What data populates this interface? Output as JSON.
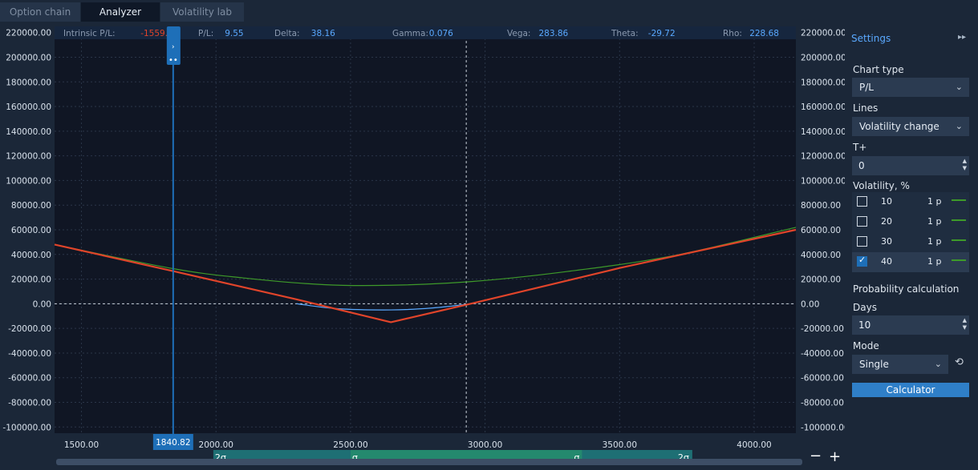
{
  "tabs": [
    {
      "label": "Option chain"
    },
    {
      "label": "Analyzer"
    },
    {
      "label": "Volatility lab"
    }
  ],
  "greeks": [
    {
      "label": "Intrinsic P/L:",
      "value": "-1559.75",
      "color": "#e0442a"
    },
    {
      "label": "P/L:",
      "value": "9.55",
      "color": "#5aa9ff"
    },
    {
      "label": "Delta:",
      "value": "38.16",
      "color": "#5aa9ff"
    },
    {
      "label": "Gamma:",
      "value": "0.076",
      "color": "#5aa9ff"
    },
    {
      "label": "Vega:",
      "value": "283.86",
      "color": "#5aa9ff"
    },
    {
      "label": "Theta:",
      "value": "-29.72",
      "color": "#5aa9ff"
    },
    {
      "label": "Rho:",
      "value": "228.68",
      "color": "#5aa9ff"
    }
  ],
  "chart_data": {
    "type": "line",
    "x_range": [
      1400,
      4155
    ],
    "y_range": [
      -105000,
      225000
    ],
    "ylim_ticks": [
      220000,
      200000,
      180000,
      160000,
      140000,
      120000,
      100000,
      80000,
      60000,
      40000,
      20000,
      0,
      -20000,
      -40000,
      -60000,
      -80000,
      -100000
    ],
    "y_tick_labels": [
      "220000.00",
      "200000.00",
      "180000.00",
      "160000.00",
      "140000.00",
      "120000.00",
      "100000.00",
      "80000.00",
      "60000.00",
      "40000.00",
      "20000.00",
      "0.00",
      "-20000.00",
      "-40000.00",
      "-60000.00",
      "-80000.00",
      "-100000.00"
    ],
    "x_ticks": [
      1500,
      2000,
      2500,
      3000,
      3500,
      4000
    ],
    "x_tick_labels": [
      "1500.00",
      "2000.00",
      "2500.00",
      "3000.00",
      "3500.00",
      "4000.00"
    ],
    "grid": true,
    "cursor_x": 1840.82,
    "cursor_label": "1840.82",
    "crosshair_x": 2930,
    "series": [
      {
        "color": "#e0442a",
        "x": [
          1400,
          1840,
          2300,
          2650,
          2950,
          3500,
          4155
        ],
        "y": [
          48000,
          26500,
          3500,
          -15000,
          200,
          29000,
          60000
        ]
      },
      {
        "color": "#5aa9ff",
        "x": [
          2300,
          2450,
          2650,
          2800,
          2950
        ],
        "y": [
          0,
          -4000,
          -5000,
          -3500,
          0
        ]
      },
      {
        "color": "#3e9a2a",
        "x": [
          1400,
          1840,
          2100,
          2400,
          2650,
          2950,
          3300,
          3700,
          4155
        ],
        "y": [
          48000,
          28500,
          21000,
          15500,
          15000,
          18000,
          26000,
          39000,
          62000
        ]
      }
    ],
    "sigma_labels": [
      "2σ",
      "σ",
      "σ",
      "2σ"
    ],
    "sigma_bands": {
      "outer": [
        1990,
        3770
      ],
      "inner": [
        2500,
        3360
      ]
    }
  },
  "zoom": {
    "minus": "−",
    "plus": "+"
  },
  "settings": {
    "title": "Settings",
    "collapse": "▸▸",
    "chart_type_label": "Chart type",
    "chart_type_value": "P/L",
    "lines_label": "Lines",
    "lines_value": "Volatility change",
    "tplus_label": "T+",
    "tplus_value": "0",
    "volatility_label": "Volatility, %",
    "volatility_rows": [
      {
        "value": "10",
        "px": "1 p",
        "checked": false
      },
      {
        "value": "20",
        "px": "1 p",
        "checked": false
      },
      {
        "value": "30",
        "px": "1 p",
        "checked": false
      },
      {
        "value": "40",
        "px": "1 p",
        "checked": true
      }
    ],
    "probability_label": "Probability calculation",
    "days_label": "Days",
    "days_value": "10",
    "mode_label": "Mode",
    "mode_value": "Single",
    "calculator_label": "Calculator",
    "chevron": "⌄",
    "spin_up": "▲",
    "spin_down": "▼",
    "refresh": "⟲"
  }
}
